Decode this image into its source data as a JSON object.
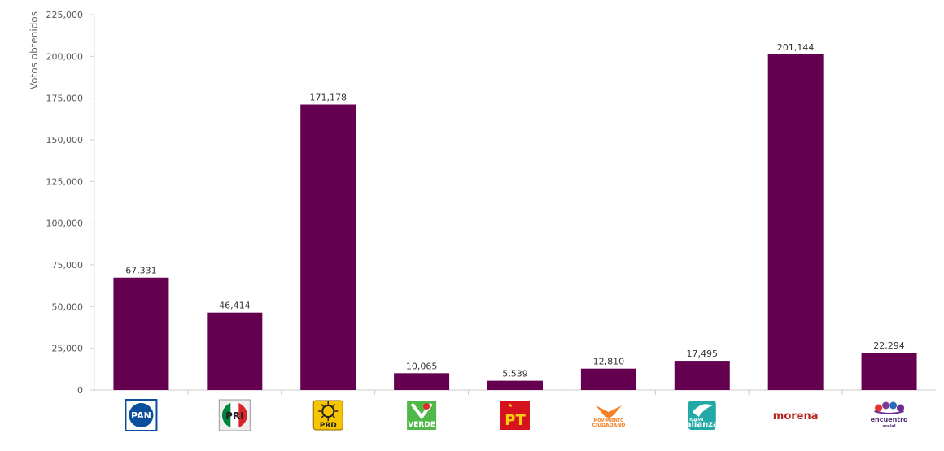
{
  "chart_data": {
    "type": "bar",
    "ylabel": "Votos obtenidos",
    "ylim": [
      0,
      225000
    ],
    "yticks": [
      0,
      25000,
      50000,
      75000,
      100000,
      125000,
      150000,
      175000,
      200000,
      225000
    ],
    "ytick_labels": [
      "0",
      "25,000",
      "50,000",
      "75,000",
      "100,000",
      "125,000",
      "150,000",
      "175,000",
      "200,000",
      "225,000"
    ],
    "grid": false,
    "bar_color": "#650050",
    "categories": [
      "PAN",
      "PRI",
      "PRD",
      "VERDE",
      "PT",
      "MOVIMIENTO CIUDADANO",
      "NUEVA ALIANZA",
      "morena",
      "encuentro social"
    ],
    "values": [
      67331,
      46414,
      171178,
      10065,
      5539,
      12810,
      17495,
      201144,
      22294
    ],
    "value_labels": [
      "67,331",
      "46,414",
      "171,178",
      "10,065",
      "5,539",
      "12,810",
      "17,495",
      "201,144",
      "22,294"
    ],
    "logos": [
      {
        "icon": "pan-logo",
        "text": "PAN"
      },
      {
        "icon": "pri-logo",
        "text": "PRI"
      },
      {
        "icon": "prd-logo",
        "text": "PRD"
      },
      {
        "icon": "verde-logo",
        "text": "VERDE"
      },
      {
        "icon": "pt-logo",
        "text": "PT"
      },
      {
        "icon": "movimiento-ciudadano-logo",
        "text": "MOVIMIENTO",
        "text2": "CIUDADANO"
      },
      {
        "icon": "nueva-alianza-logo",
        "text": "nueva",
        "text2": "alianza"
      },
      {
        "icon": "morena-logo",
        "text": "morena"
      },
      {
        "icon": "encuentro-social-logo",
        "text": "encuentro",
        "text2": "social"
      }
    ]
  }
}
